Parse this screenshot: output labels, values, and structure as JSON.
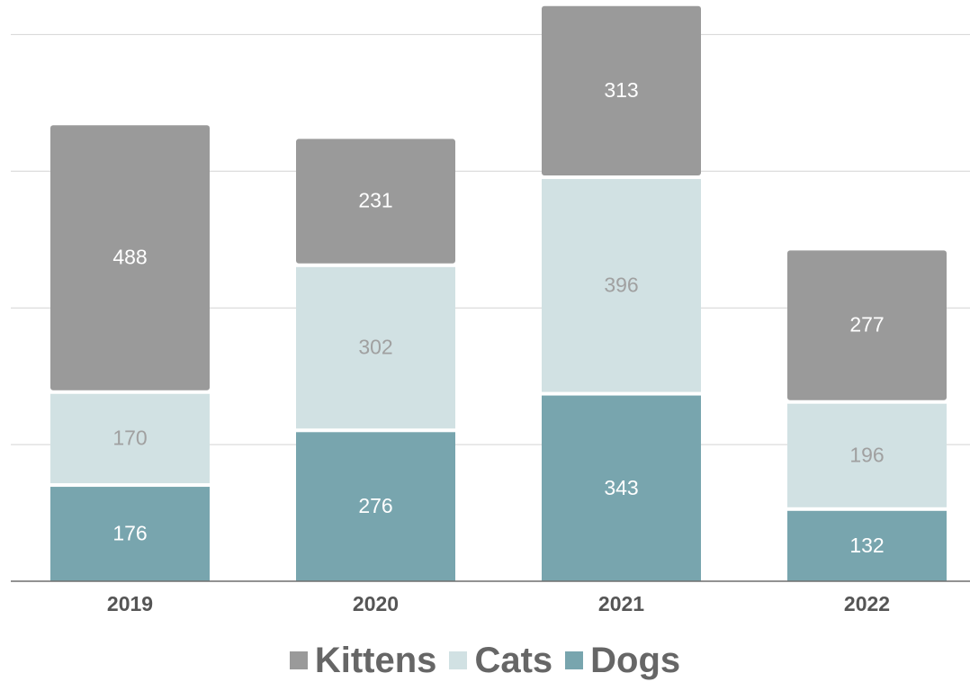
{
  "chart_data": {
    "type": "bar",
    "stacked": true,
    "categories": [
      "2019",
      "2020",
      "2021",
      "2022"
    ],
    "series": [
      {
        "name": "Dogs",
        "values": [
          176,
          276,
          343,
          132
        ],
        "color": "#78a5ae",
        "label_color": "#ffffff"
      },
      {
        "name": "Cats",
        "values": [
          170,
          302,
          396,
          196
        ],
        "color": "#d1e1e3",
        "label_color": "#a0a0a0"
      },
      {
        "name": "Kittens",
        "values": [
          488,
          231,
          313,
          277
        ],
        "color": "#9a9a9a",
        "label_color": "#ffffff"
      }
    ],
    "ylim": [
      0,
      1050
    ],
    "grid": true,
    "legend_position": "bottom",
    "legend_order": [
      "Kittens",
      "Cats",
      "Dogs"
    ]
  }
}
